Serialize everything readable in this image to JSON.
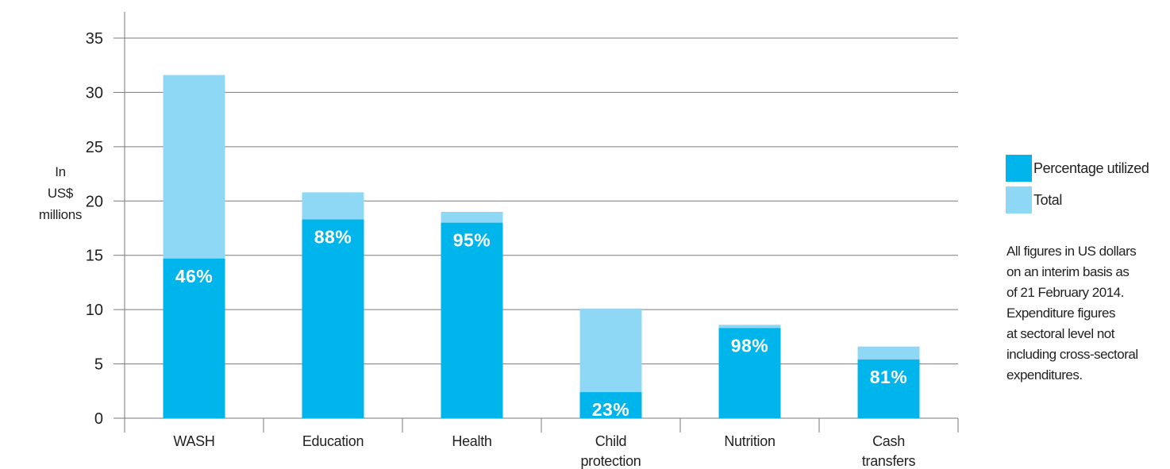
{
  "chart_data": {
    "type": "bar",
    "stacked": true,
    "categories": [
      [
        "WASH"
      ],
      [
        "Education"
      ],
      [
        "Health"
      ],
      [
        "Child",
        "protection"
      ],
      [
        "Nutrition"
      ],
      [
        "Cash",
        "transfers"
      ]
    ],
    "series": [
      {
        "name": "Percentage utilized",
        "color": "#00b4ec",
        "values": [
          14.7,
          18.3,
          18.0,
          2.4,
          8.3,
          5.4
        ]
      },
      {
        "name": "Total",
        "color": "#8fd8f5",
        "values": [
          31.6,
          20.8,
          19.0,
          10.1,
          8.6,
          6.6
        ]
      }
    ],
    "data_labels": [
      "46%",
      "88%",
      "95%",
      "23%",
      "98%",
      "81%"
    ],
    "ylabel_lines": [
      "In",
      "US$",
      "millions"
    ],
    "ylim": [
      0,
      35
    ],
    "yticks": [
      0,
      5,
      10,
      15,
      20,
      25,
      30,
      35
    ],
    "grid": true,
    "legend_position": "right"
  },
  "legend": {
    "items": [
      {
        "label": "Percentage utilized",
        "color": "#00b4ec"
      },
      {
        "label": "Total",
        "color": "#8fd8f5"
      }
    ]
  },
  "note_lines": [
    "All figures in US dollars",
    "on an interim basis as",
    "of 21 February 2014.",
    "Expenditure figures",
    "at sectoral level not",
    "including cross-sectoral",
    "expenditures."
  ]
}
